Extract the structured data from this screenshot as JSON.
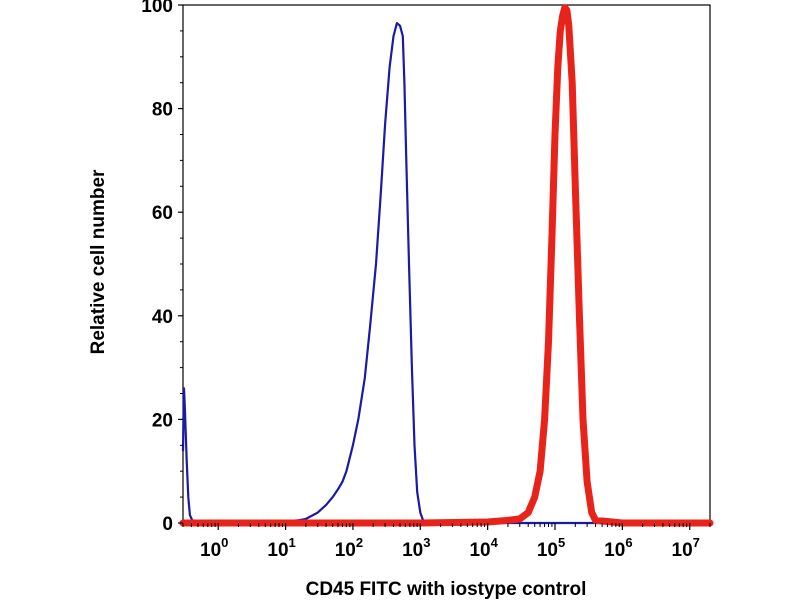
{
  "chart_data": {
    "type": "line",
    "title": "",
    "xlabel": "CD45 FITC with iostype control",
    "ylabel": "Relative cell number",
    "x_scale": "log",
    "xlim": [
      0.3,
      20000000
    ],
    "ylim": [
      0,
      100
    ],
    "grid": false,
    "x_ticks": [
      {
        "base": "10",
        "exp": "0",
        "value": 1
      },
      {
        "base": "10",
        "exp": "1",
        "value": 10
      },
      {
        "base": "10",
        "exp": "2",
        "value": 100
      },
      {
        "base": "10",
        "exp": "3",
        "value": 1000
      },
      {
        "base": "10",
        "exp": "4",
        "value": 10000
      },
      {
        "base": "10",
        "exp": "5",
        "value": 100000
      },
      {
        "base": "10",
        "exp": "6",
        "value": 1000000
      },
      {
        "base": "10",
        "exp": "7",
        "value": 10000000
      }
    ],
    "y_ticks": [
      "0",
      "20",
      "40",
      "60",
      "80",
      "100"
    ],
    "series": [
      {
        "color": "#1a1aa6",
        "x": [
          0.3,
          0.31,
          0.32,
          0.34,
          0.36,
          0.38,
          0.42,
          0.5,
          1,
          5,
          10,
          15,
          20,
          30,
          40,
          50,
          60,
          70,
          80,
          100,
          120,
          150,
          180,
          220,
          260,
          300,
          350,
          400,
          450,
          500,
          550,
          580,
          620,
          680,
          750,
          820,
          900,
          1000,
          1100,
          1200,
          1500,
          3000,
          10000,
          100000,
          10000000,
          20000000
        ],
        "y": [
          14,
          26,
          22,
          12,
          5,
          1.5,
          0.3,
          0,
          0,
          0.2,
          0.3,
          0.5,
          0.8,
          2,
          3.5,
          5,
          6.5,
          8,
          10,
          15,
          20,
          28,
          38,
          50,
          64,
          77,
          88,
          94,
          96.5,
          96,
          94,
          85,
          70,
          50,
          30,
          15,
          6,
          2,
          0.5,
          0.2,
          0,
          0,
          0,
          0,
          0,
          0
        ]
      },
      {
        "color": "#e8231a",
        "x": [
          0.3,
          1000,
          10000,
          20000,
          30000,
          40000,
          50000,
          60000,
          70000,
          80000,
          90000,
          100000,
          110000,
          120000,
          130000,
          140000,
          150000,
          160000,
          180000,
          200000,
          230000,
          260000,
          300000,
          350000,
          400000,
          1000000,
          20000000
        ],
        "y": [
          0,
          0,
          0.2,
          0.5,
          0.8,
          2,
          5,
          10,
          20,
          35,
          55,
          75,
          88,
          95,
          98,
          99.5,
          99,
          96,
          85,
          65,
          40,
          20,
          8,
          2,
          0.5,
          0,
          0
        ]
      }
    ]
  }
}
